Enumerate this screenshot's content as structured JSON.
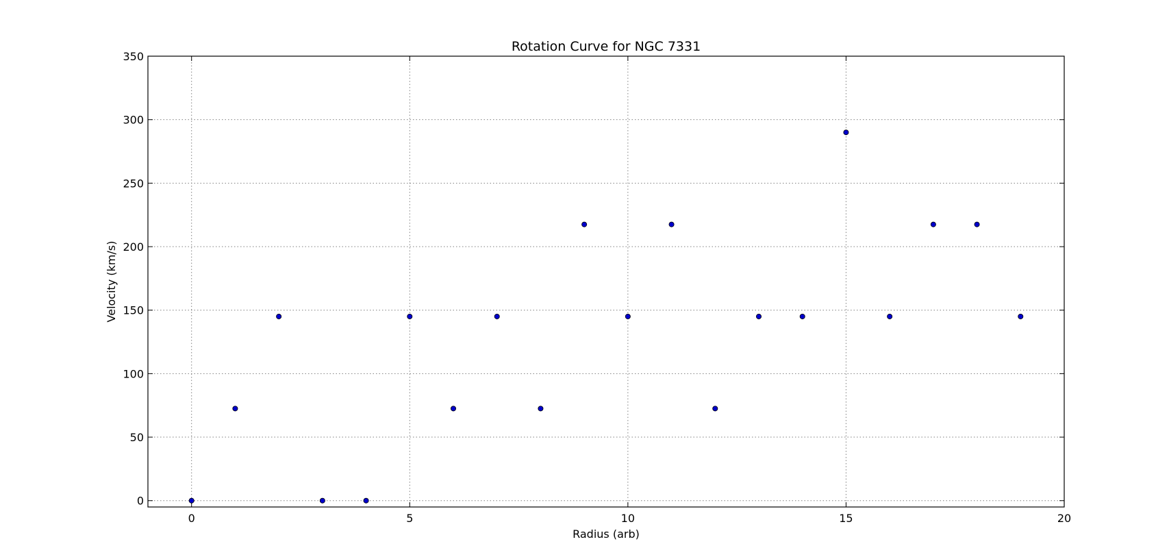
{
  "chart_data": {
    "type": "scatter",
    "title": "Rotation Curve for NGC 7331",
    "xlabel": "Radius (arb)",
    "ylabel": "Velocity (km/s)",
    "xlim": [
      -1,
      20
    ],
    "ylim": [
      -5,
      350
    ],
    "xticks": [
      0,
      5,
      10,
      15,
      20
    ],
    "yticks": [
      0,
      50,
      100,
      150,
      200,
      250,
      300,
      350
    ],
    "grid": true,
    "legend": "none",
    "marker_color": "#0000cc",
    "series": [
      {
        "x": [
          0,
          1,
          2,
          3,
          4,
          5,
          6,
          7,
          8,
          9,
          10,
          11,
          12,
          13,
          14,
          15,
          16,
          17,
          18,
          19
        ],
        "y": [
          0,
          72.5,
          145,
          0,
          0,
          145,
          72.5,
          145,
          72.5,
          217.5,
          145,
          217.5,
          72.5,
          145,
          145,
          290,
          145,
          217.5,
          217.5,
          145
        ]
      }
    ]
  }
}
